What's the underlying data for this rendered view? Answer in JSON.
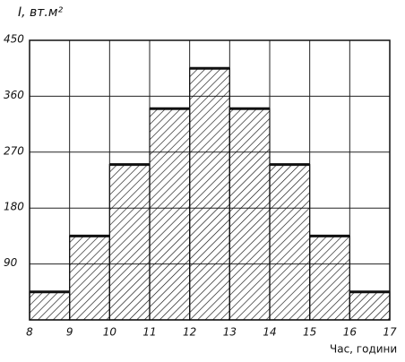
{
  "chart_data": {
    "type": "histogram",
    "title": "I, вт.м²",
    "x_label": "Час, години",
    "bins": [
      8,
      9,
      10,
      11,
      12,
      13,
      14,
      15,
      16,
      17
    ],
    "values": [
      45,
      135,
      250,
      340,
      405,
      340,
      250,
      135,
      45
    ],
    "xlim": [
      8,
      17
    ],
    "xticks": [
      8,
      9,
      10,
      11,
      12,
      13,
      14,
      15,
      16,
      17
    ],
    "ylim": [
      0,
      450
    ],
    "yticks": [
      90,
      180,
      270,
      360,
      450
    ],
    "grid": true,
    "color": "#111111"
  }
}
